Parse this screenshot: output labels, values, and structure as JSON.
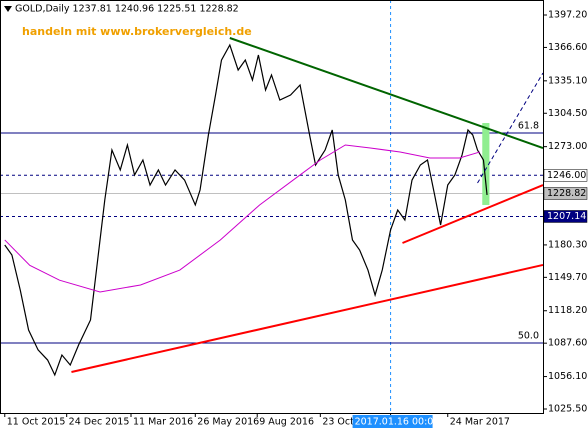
{
  "chart_data": {
    "type": "line",
    "title": "GOLD,Daily  1237.81 1240.96 1225.51 1228.82",
    "watermark": "handeln mit www.brokervergleich.de",
    "xlim": [
      -4,
      452
    ],
    "ylim": [
      1025.5,
      1397.2
    ],
    "xticks": [
      {
        "value": 0,
        "label": "11 Oct 2015"
      },
      {
        "value": 52,
        "label": "24 Dec 2015"
      },
      {
        "value": 106,
        "label": "11 Mar 2016"
      },
      {
        "value": 160,
        "label": "26 May 2016"
      },
      {
        "value": 212,
        "label": "9 Aug 2016"
      },
      {
        "value": 265,
        "label": "23 Oct 2016"
      },
      {
        "value": 324,
        "label": "2017.01.16 00:00"
      },
      {
        "value": 372,
        "label": "24 Mar 2017"
      }
    ],
    "crosshair_tick": 6,
    "yticks": [
      {
        "value": 1397.2,
        "label": "1397.20"
      },
      {
        "value": 1366.6,
        "label": "1366.60"
      },
      {
        "value": 1335.1,
        "label": "1335.10"
      },
      {
        "value": 1304.5,
        "label": "1304.50"
      },
      {
        "value": 1273,
        "label": "1273.00"
      },
      {
        "value": 1180.3,
        "label": "1180.30"
      },
      {
        "value": 1149.7,
        "label": "1149.70"
      },
      {
        "value": 1118.2,
        "label": "1118.20"
      },
      {
        "value": 1087.6,
        "label": "1087.60"
      },
      {
        "value": 1056.1,
        "label": "1056.10"
      },
      {
        "value": 1025.5,
        "label": "1025.50"
      }
    ],
    "series": [
      {
        "color": "#000000",
        "x": [
          0,
          6,
          13,
          20,
          28,
          36,
          42,
          48,
          55,
          62,
          72,
          77,
          84,
          90,
          97,
          103,
          109,
          116,
          122,
          129,
          135,
          143,
          151,
          160,
          164,
          171,
          177,
          182,
          189,
          196,
          202,
          208,
          213,
          219,
          224,
          231,
          240,
          248,
          252,
          256,
          261,
          269,
          275,
          280,
          286,
          292,
          298,
          305,
          311,
          317,
          324,
          330,
          336,
          342,
          349,
          355,
          361,
          366,
          372,
          378,
          384,
          389,
          393,
          397,
          402,
          405
        ],
        "y": [
          1180.2,
          1170.8,
          1137.8,
          1100.0,
          1081.2,
          1071.7,
          1057.6,
          1076.4,
          1067.0,
          1085.9,
          1109.5,
          1156.6,
          1222.7,
          1269.8,
          1251.0,
          1274.6,
          1246.3,
          1260.4,
          1236.8,
          1251.0,
          1236.8,
          1251.0,
          1241.5,
          1218.0,
          1232.1,
          1284.0,
          1321.7,
          1354.7,
          1368.9,
          1345.3,
          1354.7,
          1335.9,
          1359.5,
          1326.4,
          1340.6,
          1317.0,
          1321.7,
          1331.2,
          1307.6,
          1284.0,
          1255.7,
          1269.8,
          1288.7,
          1246.3,
          1222.7,
          1184.9,
          1175.5,
          1156.6,
          1133.0,
          1156.6,
          1194.4,
          1213.2,
          1203.8,
          1241.5,
          1255.7,
          1260.4,
          1227.4,
          1199.1,
          1236.8,
          1246.3,
          1265.1,
          1288.7,
          1284.0,
          1269.8,
          1260.4,
          1227.4
        ]
      },
      {
        "color": "#cc00cc",
        "x": [
          0,
          21,
          46,
          80,
          114,
          147,
          181,
          214,
          248,
          265,
          286,
          307,
          332,
          357,
          382,
          399
        ],
        "y": [
          1185.0,
          1161.0,
          1147.0,
          1135.9,
          1142.5,
          1156.6,
          1184.9,
          1218.0,
          1246.3,
          1260.4,
          1274.6,
          1271.7,
          1268.0,
          1262.3,
          1262.3,
          1268.0
        ]
      }
    ],
    "trendlines": [
      {
        "color": "#006400",
        "dashed": false,
        "x": [
          189,
          452
        ],
        "y": [
          1375.5,
          1271.7
        ]
      },
      {
        "color": "#ff0000",
        "dashed": false,
        "x": [
          56,
          452
        ],
        "y": [
          1060.4,
          1161.4
        ]
      },
      {
        "color": "#ff0000",
        "dashed": false,
        "x": [
          334,
          452
        ],
        "y": [
          1182.1,
          1236.8
        ]
      },
      {
        "color": "#000080",
        "dashed": true,
        "x": [
          397,
          452
        ],
        "y": [
          1238.7,
          1342.5
        ]
      }
    ],
    "fib_levels": [
      {
        "value": 1285.9,
        "label": "61.8"
      },
      {
        "value": 1087.8,
        "label": "50.0"
      }
    ],
    "levels": [
      {
        "value": 1246,
        "label": "1246.00",
        "dashed": true,
        "line": "#000080",
        "bg": "#ffffff",
        "fg": "#000000"
      },
      {
        "value": 1228.82,
        "label": "1228.82",
        "dashed": false,
        "line": "#c0c0c0",
        "bg": "#c0c0c0",
        "fg": "#000000"
      },
      {
        "value": 1207.14,
        "label": "1207.14",
        "dashed": true,
        "line": "#000080",
        "bg": "#000080",
        "fg": "#ffffff"
      }
    ],
    "box": {
      "color": "#90ee90",
      "x": [
        401,
        407
      ],
      "y": [
        1295.3,
        1218.0
      ]
    }
  }
}
